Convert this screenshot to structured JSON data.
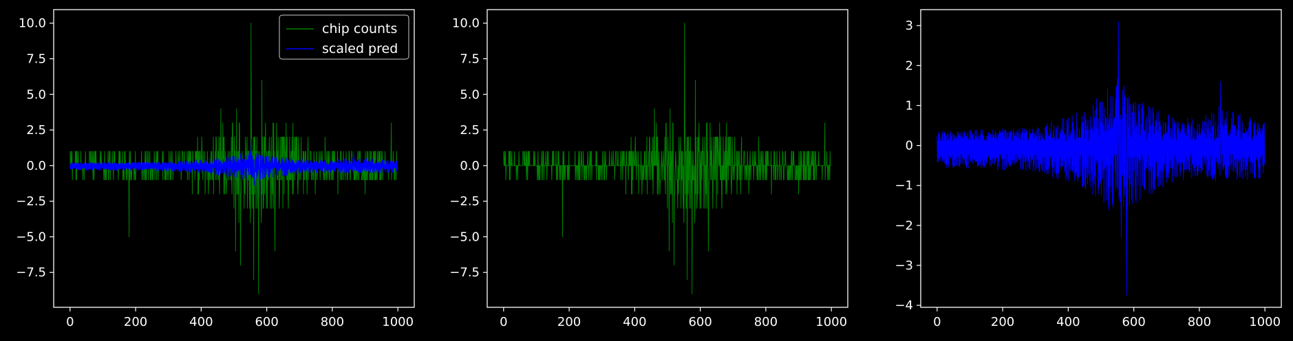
{
  "colors": {
    "background": "#000000",
    "axes": "#ffffff",
    "text": "#ffffff",
    "chip": "#008000",
    "pred": "#0000ff"
  },
  "chart_data": [
    {
      "type": "line",
      "title": "",
      "xlabel": "",
      "ylabel": "",
      "xlim": [
        -50,
        1050
      ],
      "ylim": [
        -9.95,
        10.95
      ],
      "xticks": [
        0,
        200,
        400,
        600,
        800,
        1000
      ],
      "xtick_labels": [
        "0",
        "200",
        "400",
        "600",
        "800",
        "1000"
      ],
      "yticks": [
        -7.5,
        -5.0,
        -2.5,
        0.0,
        2.5,
        5.0,
        7.5,
        10.0
      ],
      "ytick_labels": [
        "−7.5",
        "−5.0",
        "−2.5",
        "0.0",
        "2.5",
        "5.0",
        "7.5",
        "10.0"
      ],
      "legend": {
        "position": "top-right",
        "entries": [
          "chip counts",
          "scaled pred"
        ]
      },
      "series": [
        {
          "name": "chip counts",
          "color": "#008000",
          "n_points": 1000,
          "baseline": 0,
          "noise_envelope": [
            [
              0,
              0.9
            ],
            [
              300,
              1.0
            ],
            [
              400,
              2.0
            ],
            [
              500,
              3.6
            ],
            [
              560,
              4.2
            ],
            [
              650,
              3.0
            ],
            [
              750,
              1.6
            ],
            [
              1000,
              1.4
            ]
          ],
          "spikes": [
            [
              180,
              -5
            ],
            [
              460,
              4
            ],
            [
              505,
              -6
            ],
            [
              520,
              -7
            ],
            [
              552,
              10
            ],
            [
              560,
              -8
            ],
            [
              575,
              -9
            ],
            [
              585,
              6
            ],
            [
              625,
              -6
            ],
            [
              680,
              3
            ],
            [
              900,
              -2
            ],
            [
              980,
              3
            ]
          ]
        },
        {
          "name": "scaled pred",
          "color": "#0000ff",
          "n_points": 1000,
          "positive_band": {
            "base": 0.1,
            "envelope": [
              [
                0,
                0.25
              ],
              [
                300,
                0.35
              ],
              [
                450,
                0.8
              ],
              [
                550,
                1.6
              ],
              [
                600,
                1.1
              ],
              [
                700,
                0.7
              ],
              [
                800,
                0.55
              ],
              [
                860,
                0.9
              ],
              [
                1000,
                0.5
              ]
            ]
          },
          "negative_band": {
            "base": -0.2,
            "envelope": [
              [
                0,
                0.35
              ],
              [
                300,
                0.45
              ],
              [
                450,
                0.9
              ],
              [
                550,
                1.6
              ],
              [
                600,
                1.3
              ],
              [
                700,
                0.8
              ],
              [
                800,
                0.6
              ],
              [
                860,
                0.8
              ],
              [
                1000,
                0.6
              ]
            ]
          },
          "spikes": [
            [
              553,
              3.1
            ],
            [
              578,
              -3.75
            ],
            [
              562,
              -2.3
            ],
            [
              865,
              1.6
            ]
          ],
          "scale": 0.6
        }
      ]
    },
    {
      "type": "line",
      "title": "",
      "xlabel": "",
      "ylabel": "",
      "xlim": [
        -50,
        1050
      ],
      "ylim": [
        -9.95,
        10.95
      ],
      "xticks": [
        0,
        200,
        400,
        600,
        800,
        1000
      ],
      "xtick_labels": [
        "0",
        "200",
        "400",
        "600",
        "800",
        "1000"
      ],
      "yticks": [
        -7.5,
        -5.0,
        -2.5,
        0.0,
        2.5,
        5.0,
        7.5,
        10.0
      ],
      "ytick_labels": [
        "−7.5",
        "−5.0",
        "−2.5",
        "0.0",
        "2.5",
        "5.0",
        "7.5",
        "10.0"
      ],
      "series": [
        {
          "name": "chip counts",
          "color": "#008000",
          "n_points": 1000,
          "baseline": 0,
          "noise_envelope": [
            [
              0,
              0.9
            ],
            [
              300,
              1.0
            ],
            [
              400,
              2.0
            ],
            [
              500,
              3.6
            ],
            [
              560,
              4.2
            ],
            [
              650,
              3.0
            ],
            [
              750,
              1.6
            ],
            [
              1000,
              1.4
            ]
          ],
          "spikes": [
            [
              180,
              -5
            ],
            [
              460,
              4
            ],
            [
              505,
              -6
            ],
            [
              520,
              -7
            ],
            [
              552,
              10
            ],
            [
              560,
              -8
            ],
            [
              575,
              -9
            ],
            [
              585,
              6
            ],
            [
              625,
              -6
            ],
            [
              680,
              3
            ],
            [
              900,
              -2
            ],
            [
              980,
              3
            ]
          ]
        }
      ]
    },
    {
      "type": "line",
      "title": "",
      "xlabel": "",
      "ylabel": "",
      "xlim": [
        -50,
        1050
      ],
      "ylim": [
        -4.05,
        3.4
      ],
      "xticks": [
        0,
        200,
        400,
        600,
        800,
        1000
      ],
      "xtick_labels": [
        "0",
        "200",
        "400",
        "600",
        "800",
        "1000"
      ],
      "yticks": [
        -4,
        -3,
        -2,
        -1,
        0,
        1,
        2,
        3
      ],
      "ytick_labels": [
        "−4",
        "−3",
        "−2",
        "−1",
        "0",
        "1",
        "2",
        "3"
      ],
      "series": [
        {
          "name": "scaled pred",
          "color": "#0000ff",
          "n_points": 1000,
          "positive_band": {
            "base": 0.1,
            "envelope": [
              [
                0,
                0.25
              ],
              [
                300,
                0.35
              ],
              [
                450,
                0.8
              ],
              [
                550,
                1.6
              ],
              [
                600,
                1.1
              ],
              [
                700,
                0.7
              ],
              [
                800,
                0.55
              ],
              [
                860,
                0.9
              ],
              [
                1000,
                0.5
              ]
            ]
          },
          "negative_band": {
            "base": -0.2,
            "envelope": [
              [
                0,
                0.35
              ],
              [
                300,
                0.45
              ],
              [
                450,
                0.9
              ],
              [
                550,
                1.6
              ],
              [
                600,
                1.3
              ],
              [
                700,
                0.8
              ],
              [
                800,
                0.6
              ],
              [
                860,
                0.8
              ],
              [
                1000,
                0.6
              ]
            ]
          },
          "spikes": [
            [
              553,
              3.1
            ],
            [
              578,
              -3.75
            ],
            [
              562,
              -2.3
            ],
            [
              865,
              1.6
            ]
          ],
          "scale": 1.0
        }
      ]
    }
  ]
}
